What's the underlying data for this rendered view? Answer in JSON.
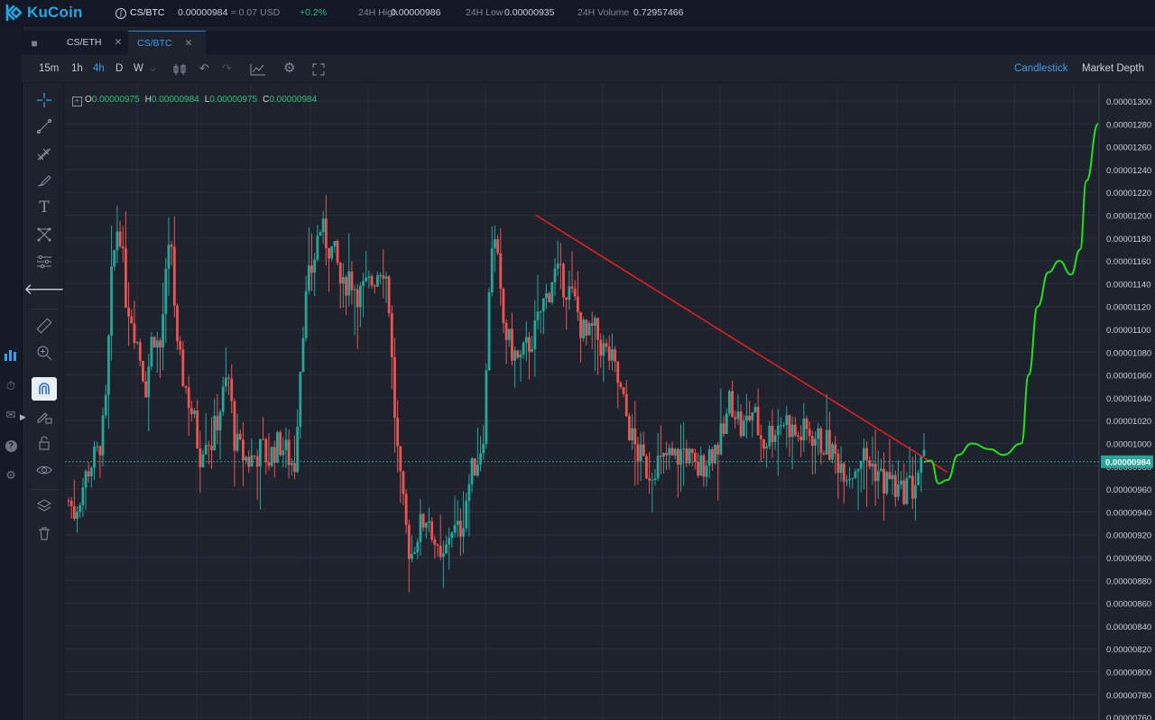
{
  "header": {
    "brand": "KuCoin",
    "pair": "CS/BTC",
    "last_price": "0.00000984",
    "usd_value": "≈ 0.07 USD",
    "change": "+0.2%",
    "high_label": "24H High",
    "high_value": "0.00000986",
    "low_label": "24H Low",
    "low_value": "0.00000935",
    "volume_label": "24H Volume",
    "volume_value": "0.72957466"
  },
  "tabs": [
    {
      "label": "CS/ETH",
      "active": false
    },
    {
      "label": "CS/BTC",
      "active": true
    }
  ],
  "toolbar": {
    "intervals": [
      "15m",
      "1h",
      "4h",
      "D",
      "W"
    ],
    "active_interval": "4h",
    "views": [
      "Candlestick",
      "Market Depth"
    ],
    "active_view": "Candlestick"
  },
  "ohlc": {
    "o_label": "O",
    "o": "0.00000975",
    "h_label": "H",
    "h": "0.00000984",
    "l_label": "L",
    "l": "0.00000975",
    "c_label": "C",
    "c": "0.00000984"
  },
  "colors": {
    "up": "#26a69a",
    "down": "#ef5350",
    "trendline": "#e01e1e",
    "projection": "#22e01e",
    "accent": "#3a9eea"
  },
  "chart_data": {
    "type": "candlestick",
    "price_axis_ticks": [
      "0.00001300",
      "0.00001280",
      "0.00001260",
      "0.00001240",
      "0.00001220",
      "0.00001200",
      "0.00001180",
      "0.00001160",
      "0.00001140",
      "0.00001120",
      "0.00001100",
      "0.00001080",
      "0.00001060",
      "0.00001040",
      "0.00001020",
      "0.00001000",
      "0.00000980",
      "0.00000960",
      "0.00000940",
      "0.00000920",
      "0.00000900",
      "0.00000880",
      "0.00000860",
      "0.00000840",
      "0.00000820",
      "0.00000800",
      "0.00000780",
      "0.00000760"
    ],
    "ylim": [
      7.6e-06,
      1.3e-05
    ],
    "last_price_label": "0.00000984",
    "last_price": 9.84e-06,
    "price_path": [
      [
        0,
        950
      ],
      [
        5,
        940
      ],
      [
        10,
        955
      ],
      [
        18,
        980
      ],
      [
        25,
        990
      ],
      [
        32,
        1020
      ],
      [
        38,
        1150
      ],
      [
        44,
        1200
      ],
      [
        50,
        1130
      ],
      [
        56,
        1110
      ],
      [
        62,
        1080
      ],
      [
        68,
        1050
      ],
      [
        74,
        1100
      ],
      [
        80,
        1080
      ],
      [
        85,
        1140
      ],
      [
        90,
        1180
      ],
      [
        95,
        1080
      ],
      [
        100,
        1060
      ],
      [
        105,
        1040
      ],
      [
        110,
        1020
      ],
      [
        115,
        990
      ],
      [
        120,
        1010
      ],
      [
        125,
        1000
      ],
      [
        130,
        1020
      ],
      [
        135,
        1040
      ],
      [
        140,
        1060
      ],
      [
        146,
        1000
      ],
      [
        152,
        990
      ],
      [
        158,
        985
      ],
      [
        164,
        990
      ],
      [
        170,
        995
      ],
      [
        175,
        985
      ],
      [
        180,
        995
      ],
      [
        186,
        1000
      ],
      [
        192,
        990
      ],
      [
        198,
        980
      ],
      [
        205,
        1100
      ],
      [
        210,
        1140
      ],
      [
        215,
        1160
      ],
      [
        220,
        1190
      ],
      [
        225,
        1180
      ],
      [
        230,
        1170
      ],
      [
        235,
        1160
      ],
      [
        240,
        1130
      ],
      [
        245,
        1150
      ],
      [
        250,
        1140
      ],
      [
        255,
        1130
      ],
      [
        260,
        1135
      ],
      [
        265,
        1140
      ],
      [
        270,
        1150
      ],
      [
        275,
        1160
      ],
      [
        280,
        1140
      ],
      [
        285,
        1040
      ],
      [
        290,
        970
      ],
      [
        295,
        930
      ],
      [
        300,
        900
      ],
      [
        305,
        920
      ],
      [
        310,
        930
      ],
      [
        315,
        940
      ],
      [
        320,
        920
      ],
      [
        325,
        890
      ],
      [
        330,
        900
      ],
      [
        335,
        930
      ],
      [
        340,
        920
      ],
      [
        345,
        930
      ],
      [
        350,
        960
      ],
      [
        355,
        980
      ],
      [
        360,
        990
      ],
      [
        365,
        1020
      ],
      [
        370,
        1180
      ],
      [
        375,
        1170
      ],
      [
        380,
        1110
      ],
      [
        385,
        1090
      ],
      [
        390,
        1080
      ],
      [
        395,
        1070
      ],
      [
        400,
        1080
      ],
      [
        405,
        1090
      ],
      [
        410,
        1100
      ],
      [
        415,
        1120
      ],
      [
        420,
        1130
      ],
      [
        425,
        1150
      ],
      [
        430,
        1145
      ],
      [
        435,
        1140
      ],
      [
        440,
        1130
      ],
      [
        445,
        1120
      ],
      [
        450,
        1100
      ],
      [
        455,
        1090
      ],
      [
        460,
        1100
      ],
      [
        465,
        1090
      ],
      [
        470,
        1080
      ],
      [
        475,
        1075
      ],
      [
        480,
        1060
      ],
      [
        485,
        1040
      ],
      [
        490,
        1020
      ],
      [
        495,
        1000
      ],
      [
        500,
        990
      ],
      [
        505,
        980
      ],
      [
        510,
        975
      ],
      [
        515,
        985
      ],
      [
        520,
        980
      ],
      [
        525,
        990
      ],
      [
        530,
        985
      ],
      [
        535,
        990
      ],
      [
        540,
        995
      ],
      [
        545,
        985
      ],
      [
        550,
        975
      ],
      [
        555,
        980
      ],
      [
        560,
        990
      ],
      [
        565,
        995
      ],
      [
        570,
        1000
      ],
      [
        575,
        1010
      ],
      [
        580,
        1040
      ],
      [
        585,
        1030
      ],
      [
        590,
        1010
      ],
      [
        595,
        1020
      ],
      [
        600,
        1030
      ],
      [
        605,
        1010
      ],
      [
        610,
        1000
      ],
      [
        615,
        1010
      ],
      [
        620,
        1015
      ],
      [
        625,
        1020
      ],
      [
        630,
        1020
      ],
      [
        635,
        1010
      ],
      [
        640,
        1005
      ],
      [
        645,
        1010
      ],
      [
        650,
        1010
      ],
      [
        655,
        1005
      ],
      [
        660,
        1000
      ],
      [
        665,
        1000
      ],
      [
        670,
        990
      ],
      [
        675,
        985
      ],
      [
        680,
        980
      ],
      [
        685,
        975
      ],
      [
        690,
        980
      ],
      [
        695,
        990
      ],
      [
        700,
        985
      ],
      [
        705,
        980
      ],
      [
        710,
        975
      ],
      [
        715,
        965
      ],
      [
        720,
        970
      ],
      [
        725,
        960
      ],
      [
        730,
        955
      ],
      [
        735,
        965
      ],
      [
        740,
        960
      ],
      [
        745,
        975
      ],
      [
        750,
        984
      ]
    ],
    "trendline": {
      "from": [
        1.2e-05
      ],
      "to": [
        9.7e-06
      ]
    },
    "projection": [
      9.84e-06,
      9.65e-06,
      9.9e-06,
      1e-05,
      9.9e-06,
      1e-05,
      1.1e-05,
      1.16e-05,
      1.15e-05,
      1.28e-05
    ]
  }
}
